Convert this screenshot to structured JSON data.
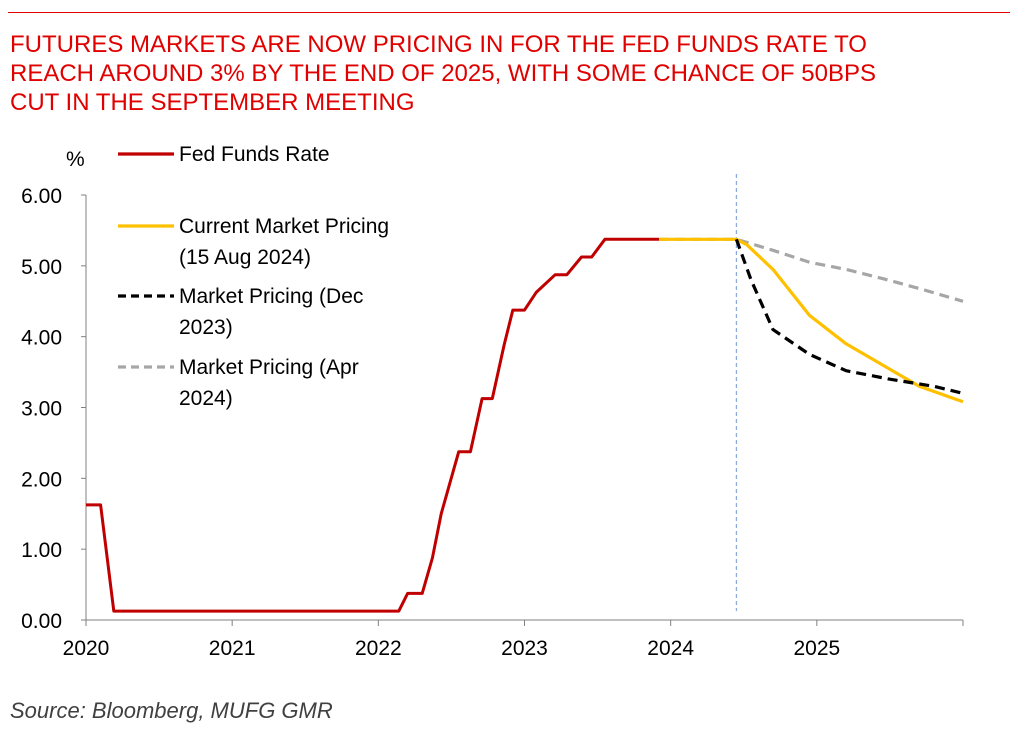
{
  "title_lines": [
    "FUTURES MARKETS ARE NOW PRICING IN FOR THE FED FUNDS RATE TO",
    "REACH AROUND 3% BY THE END OF 2025, WITH SOME CHANCE OF 50BPS",
    "CUT IN THE SEPTEMBER MEETING"
  ],
  "source": "Source: Bloomberg, MUFG GMR",
  "colors": {
    "title": "#e00000",
    "fed_funds": "#c00000",
    "current_pricing": "#ffc000",
    "dec_2023": "#000000",
    "apr_2024": "#a6a6a6",
    "vline": "#8ea9db"
  },
  "chart_data": {
    "type": "line",
    "ylabel": "%",
    "ylim": [
      0,
      6
    ],
    "xlim": [
      2020.0,
      2026.0
    ],
    "yticks": [
      "0.00",
      "1.00",
      "2.00",
      "3.00",
      "4.00",
      "5.00",
      "6.00"
    ],
    "xticks": [
      "2020",
      "2021",
      "2022",
      "2023",
      "2024",
      "2025"
    ],
    "vertical_marker_x": 2024.45,
    "legend_position": "top-left",
    "series": [
      {
        "name": "Fed Funds Rate",
        "style": "solid",
        "x": [
          2020.0,
          2020.1,
          2020.19,
          2022.14,
          2022.2,
          2022.3,
          2022.37,
          2022.43,
          2022.55,
          2022.63,
          2022.71,
          2022.78,
          2022.86,
          2022.92,
          2023.0,
          2023.08,
          2023.21,
          2023.29,
          2023.39,
          2023.46,
          2023.55,
          2023.92
        ],
        "y": [
          1.625,
          1.625,
          0.125,
          0.125,
          0.375,
          0.375,
          0.875,
          1.5,
          2.375,
          2.375,
          3.125,
          3.125,
          3.875,
          4.375,
          4.375,
          4.625,
          4.875,
          4.875,
          5.125,
          5.125,
          5.375,
          5.375
        ]
      },
      {
        "name": "Current Market Pricing (15 Aug 2024)",
        "style": "solid",
        "x": [
          2023.92,
          2024.1,
          2024.25,
          2024.45,
          2024.52,
          2024.7,
          2024.95,
          2025.2,
          2025.45,
          2025.7,
          2026.0
        ],
        "y": [
          5.375,
          5.375,
          5.375,
          5.375,
          5.3,
          4.95,
          4.3,
          3.9,
          3.6,
          3.3,
          3.08
        ]
      },
      {
        "name": "Market Pricing (Dec 2023)",
        "style": "dashed",
        "x": [
          2024.45,
          2024.55,
          2024.7,
          2024.95,
          2025.2,
          2025.5,
          2025.8,
          2026.0
        ],
        "y": [
          5.375,
          4.8,
          4.1,
          3.75,
          3.52,
          3.4,
          3.3,
          3.2
        ]
      },
      {
        "name": "Market Pricing (Apr 2024)",
        "style": "dashed",
        "x": [
          2023.92,
          2024.1,
          2024.3,
          2024.45,
          2024.7,
          2024.95,
          2025.2,
          2025.45,
          2025.7,
          2026.0
        ],
        "y": [
          5.375,
          5.375,
          5.375,
          5.375,
          5.22,
          5.05,
          4.95,
          4.82,
          4.68,
          4.5
        ]
      }
    ],
    "legend": [
      {
        "lines": [
          "Fed Funds Rate"
        ]
      },
      {
        "lines": [
          "Current Market Pricing",
          "(15 Aug 2024)"
        ]
      },
      {
        "lines": [
          "Market Pricing (Dec",
          "2023)"
        ]
      },
      {
        "lines": [
          "Market Pricing (Apr",
          "2024)"
        ]
      }
    ]
  }
}
